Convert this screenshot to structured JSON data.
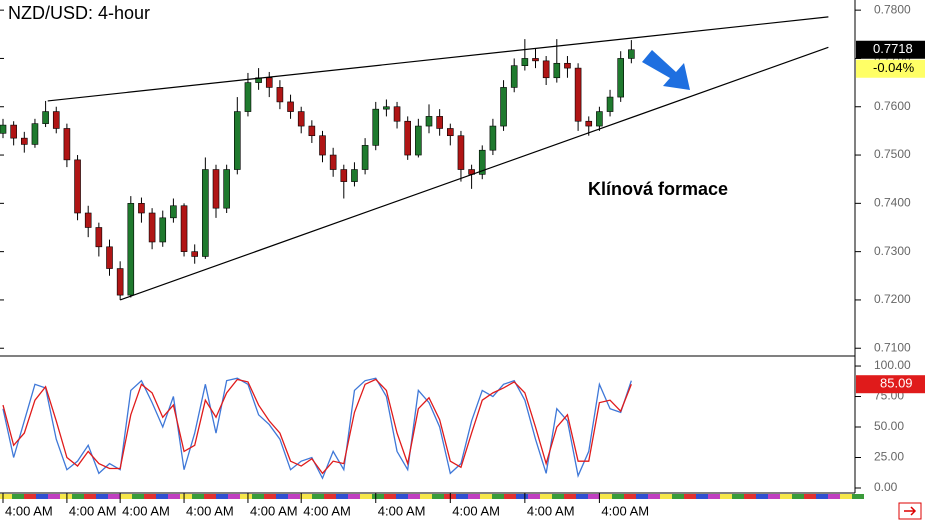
{
  "chart_data": [
    {
      "type": "candlestick",
      "title": "NZD/USD: 4-hour",
      "annotation": "Klínová formace",
      "up_color": "#1f7a2e",
      "down_color": "#b01515",
      "open": [
        0.7545,
        0.7562,
        0.7535,
        0.7522,
        0.7565,
        0.759,
        0.7555,
        0.749,
        0.738,
        0.735,
        0.731,
        0.7265,
        0.721,
        0.74,
        0.738,
        0.732,
        0.737,
        0.7395,
        0.73,
        0.729,
        0.747,
        0.739,
        0.747,
        0.759,
        0.765,
        0.766,
        0.764,
        0.761,
        0.759,
        0.756,
        0.754,
        0.75,
        0.747,
        0.7445,
        0.747,
        0.752,
        0.7595,
        0.76,
        0.757,
        0.75,
        0.756,
        0.758,
        0.7555,
        0.754,
        0.747,
        0.746,
        0.751,
        0.756,
        0.764,
        0.7685,
        0.77,
        0.7695,
        0.766,
        0.769,
        0.768,
        0.757,
        0.756,
        0.759,
        0.762,
        0.77
      ],
      "high": [
        0.7575,
        0.757,
        0.7548,
        0.7575,
        0.7612,
        0.76,
        0.7565,
        0.75,
        0.7395,
        0.736,
        0.7325,
        0.728,
        0.7415,
        0.7412,
        0.739,
        0.7385,
        0.741,
        0.74,
        0.7315,
        0.7495,
        0.748,
        0.748,
        0.762,
        0.767,
        0.768,
        0.7672,
        0.7655,
        0.7625,
        0.76,
        0.7572,
        0.755,
        0.7515,
        0.748,
        0.7485,
        0.7535,
        0.761,
        0.7615,
        0.761,
        0.758,
        0.7575,
        0.7605,
        0.7595,
        0.7565,
        0.755,
        0.748,
        0.752,
        0.7575,
        0.7655,
        0.77,
        0.774,
        0.772,
        0.7705,
        0.774,
        0.7705,
        0.769,
        0.758,
        0.76,
        0.7635,
        0.7715,
        0.7738
      ],
      "low": [
        0.7535,
        0.752,
        0.7505,
        0.7515,
        0.7558,
        0.7545,
        0.7475,
        0.7365,
        0.733,
        0.729,
        0.725,
        0.72,
        0.7205,
        0.736,
        0.7305,
        0.731,
        0.736,
        0.729,
        0.7275,
        0.7285,
        0.737,
        0.738,
        0.746,
        0.758,
        0.7635,
        0.762,
        0.7595,
        0.7575,
        0.7545,
        0.7525,
        0.7485,
        0.7455,
        0.741,
        0.7435,
        0.746,
        0.751,
        0.758,
        0.7555,
        0.749,
        0.7495,
        0.7545,
        0.754,
        0.752,
        0.7445,
        0.743,
        0.745,
        0.75,
        0.755,
        0.763,
        0.7675,
        0.768,
        0.7645,
        0.765,
        0.766,
        0.755,
        0.754,
        0.755,
        0.758,
        0.761,
        0.769
      ],
      "close": [
        0.7562,
        0.7535,
        0.7522,
        0.7565,
        0.759,
        0.7555,
        0.749,
        0.738,
        0.735,
        0.731,
        0.7265,
        0.721,
        0.74,
        0.738,
        0.732,
        0.737,
        0.7395,
        0.73,
        0.729,
        0.747,
        0.739,
        0.747,
        0.759,
        0.765,
        0.766,
        0.764,
        0.761,
        0.759,
        0.756,
        0.754,
        0.75,
        0.747,
        0.7445,
        0.747,
        0.752,
        0.7595,
        0.76,
        0.757,
        0.75,
        0.756,
        0.758,
        0.7555,
        0.754,
        0.747,
        0.746,
        0.751,
        0.756,
        0.764,
        0.7685,
        0.77,
        0.7695,
        0.766,
        0.769,
        0.768,
        0.757,
        0.756,
        0.759,
        0.762,
        0.77,
        0.7718
      ],
      "trendlines": [
        {
          "x": [
            4.2,
            77.5
          ],
          "y": [
            0.7612,
            0.7786
          ]
        },
        {
          "x": [
            11,
            77.5
          ],
          "y": [
            0.72,
            0.7723
          ]
        }
      ],
      "ylim": [
        0.7086,
        0.7821
      ],
      "yticks": [
        {
          "value": 0.78,
          "label": "0.7800"
        },
        {
          "value": 0.77,
          "label": "0.7700"
        },
        {
          "value": 0.76,
          "label": "0.7600"
        },
        {
          "value": 0.75,
          "label": "0.7500"
        },
        {
          "value": 0.74,
          "label": "0.7400"
        },
        {
          "value": 0.73,
          "label": "0.7300"
        },
        {
          "value": 0.72,
          "label": "0.7200"
        },
        {
          "value": 0.71,
          "label": "0.7100"
        }
      ],
      "price_label": {
        "value": 0.7718,
        "label": "0.7718"
      },
      "change_label": {
        "value": -0.04,
        "label": "-0.04%"
      }
    },
    {
      "type": "line",
      "categories": [
        "4:00 AM",
        null,
        null,
        null,
        null,
        null,
        "4:00 AM",
        null,
        null,
        null,
        null,
        "4:00 AM",
        null,
        null,
        null,
        null,
        null,
        "4:00 AM",
        null,
        null,
        null,
        null,
        null,
        "4:00 AM",
        null,
        null,
        null,
        null,
        "4:00 AM",
        null,
        null,
        null,
        null,
        null,
        null,
        "4:00 AM",
        null,
        null,
        null,
        null,
        null,
        null,
        "4:00 AM",
        null,
        null,
        null,
        null,
        null,
        null,
        "4:00 AM",
        null,
        null,
        null,
        null,
        null,
        null,
        "4:00 AM",
        null,
        null,
        null
      ],
      "series": [
        {
          "color": "#3f78d8",
          "values": [
            65,
            25,
            55,
            85,
            82,
            40,
            15,
            22,
            35,
            12,
            20,
            15,
            80,
            88,
            70,
            50,
            75,
            15,
            45,
            85,
            45,
            88,
            90,
            85,
            60,
            52,
            40,
            15,
            22,
            25,
            8,
            30,
            15,
            80,
            88,
            90,
            75,
            30,
            15,
            80,
            70,
            50,
            12,
            20,
            55,
            80,
            75,
            85,
            88,
            72,
            40,
            12,
            65,
            55,
            10,
            30,
            85,
            65,
            62,
            88
          ]
        },
        {
          "color": "#e01b1b",
          "values": [
            68,
            35,
            45,
            72,
            83,
            55,
            25,
            18,
            30,
            20,
            16,
            16,
            60,
            85,
            78,
            58,
            68,
            30,
            35,
            72,
            58,
            78,
            89,
            87,
            68,
            55,
            45,
            22,
            18,
            24,
            12,
            22,
            20,
            62,
            85,
            89,
            80,
            45,
            20,
            65,
            74,
            56,
            22,
            17,
            45,
            72,
            78,
            82,
            87,
            78,
            50,
            20,
            50,
            60,
            22,
            22,
            70,
            72,
            63,
            85.09
          ]
        }
      ],
      "ylim": [
        -4.1,
        107.4
      ],
      "yticks": [
        {
          "value": 100,
          "label": "100.00"
        },
        {
          "value": 75,
          "label": "75.00"
        },
        {
          "value": 50,
          "label": "50.00"
        },
        {
          "value": 25,
          "label": "25.00"
        },
        {
          "value": 0,
          "label": "0.00"
        }
      ],
      "value_label": {
        "value": 85.09,
        "label": "85.09"
      }
    }
  ]
}
